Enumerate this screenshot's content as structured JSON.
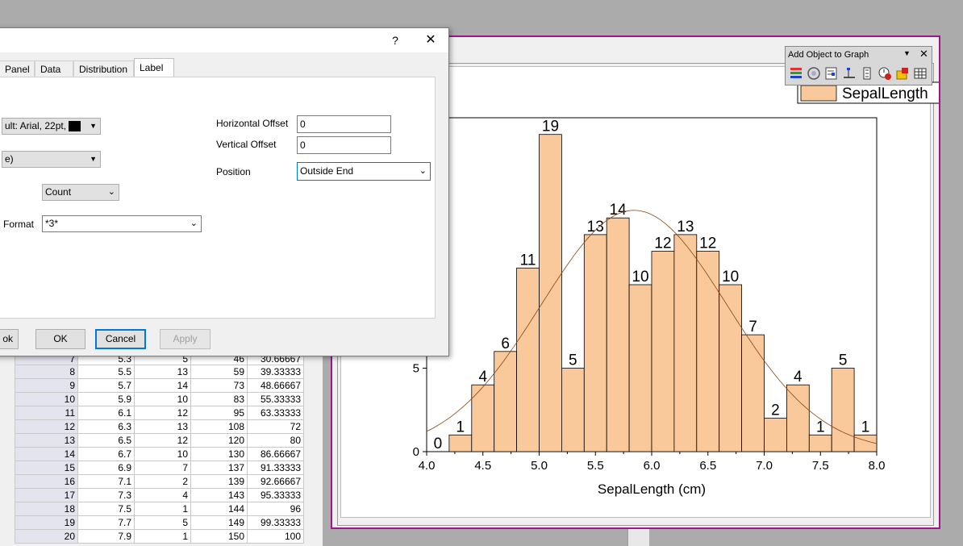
{
  "dialog": {
    "help_glyph": "?",
    "close_glyph": "✕",
    "tabs": [
      "Panel",
      "Data",
      "Distribution",
      "Label"
    ],
    "active_tab": "Label",
    "font_combo": "ult: Arial, 22pt,",
    "second_combo": "e)",
    "count_combo": "Count",
    "format_label": "Format",
    "format_combo": "*3*",
    "horizontal_offset_label": "Horizontal Offset",
    "horizontal_offset_value": "0",
    "vertical_offset_label": "Vertical Offset",
    "vertical_offset_value": "0",
    "position_label": "Position",
    "position_value": "Outside End",
    "buttons": {
      "ok_partial": "ok",
      "ok": "OK",
      "cancel": "Cancel",
      "apply": "Apply"
    }
  },
  "toolbar": {
    "title": "Add Object to Graph"
  },
  "legend": {
    "label": "SepalLength"
  },
  "worksheet": {
    "partial_row": [
      "7",
      "5.3",
      "5",
      "46",
      "30.66667"
    ],
    "rows": [
      [
        "8",
        "5.5",
        "13",
        "59",
        "39.33333"
      ],
      [
        "9",
        "5.7",
        "14",
        "73",
        "48.66667"
      ],
      [
        "10",
        "5.9",
        "10",
        "83",
        "55.33333"
      ],
      [
        "11",
        "6.1",
        "12",
        "95",
        "63.33333"
      ],
      [
        "12",
        "6.3",
        "13",
        "108",
        "72"
      ],
      [
        "13",
        "6.5",
        "12",
        "120",
        "80"
      ],
      [
        "14",
        "6.7",
        "10",
        "130",
        "86.66667"
      ],
      [
        "15",
        "6.9",
        "7",
        "137",
        "91.33333"
      ],
      [
        "16",
        "7.1",
        "2",
        "139",
        "92.66667"
      ],
      [
        "17",
        "7.3",
        "4",
        "143",
        "95.33333"
      ],
      [
        "18",
        "7.5",
        "1",
        "144",
        "96"
      ],
      [
        "19",
        "7.7",
        "5",
        "149",
        "99.33333"
      ],
      [
        "20",
        "7.9",
        "1",
        "150",
        "100"
      ]
    ]
  },
  "chart_data": {
    "type": "bar",
    "xlabel": "SepalLength (cm)",
    "ylabel": "",
    "xlim": [
      4.0,
      8.0
    ],
    "ylim": [
      0,
      20
    ],
    "bin_width": 0.2,
    "x_ticks": [
      "4.0",
      "4.5",
      "5.0",
      "5.5",
      "6.0",
      "6.5",
      "7.0",
      "7.5",
      "8.0"
    ],
    "y_ticks_visible": [
      "0",
      "5"
    ],
    "bins_start": [
      4.0,
      4.2,
      4.4,
      4.6,
      4.8,
      5.0,
      5.2,
      5.4,
      5.6,
      5.8,
      6.0,
      6.2,
      6.4,
      6.6,
      6.8,
      7.0,
      7.2,
      7.4,
      7.6,
      7.8
    ],
    "counts": [
      0,
      1,
      4,
      6,
      11,
      19,
      5,
      13,
      14,
      10,
      12,
      13,
      12,
      10,
      7,
      2,
      4,
      1,
      5,
      1
    ],
    "labels": [
      "0",
      "1",
      "4",
      "6",
      "11",
      "19",
      "5",
      "13",
      "14",
      "10",
      "12",
      "13",
      "12",
      "10",
      "7",
      "2",
      "4",
      "1",
      "5",
      "1"
    ],
    "bar_color": "#f9c89b",
    "curve_color": "#8b4513",
    "curve": {
      "type": "normal",
      "mean": 5.843,
      "sd": 0.828,
      "n": 150
    }
  }
}
